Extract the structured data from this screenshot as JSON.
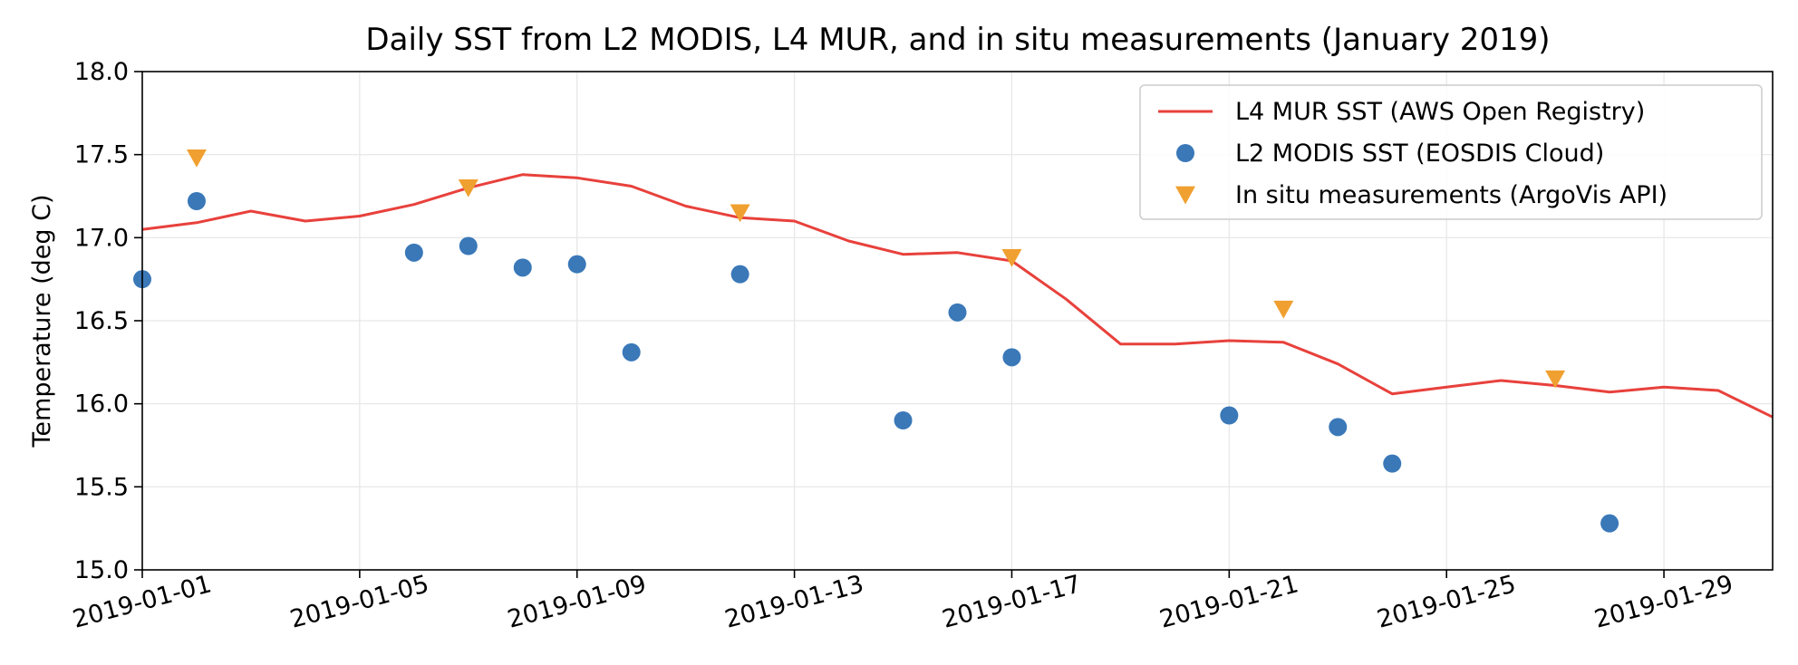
{
  "chart_data": {
    "type": "line",
    "title": "Daily SST from L2 MODIS, L4 MUR, and in situ measurements (January 2019)",
    "xlabel": "",
    "ylabel": "Temperature (deg C)",
    "xlim": [
      "2019-01-01",
      "2019-01-31"
    ],
    "ylim": [
      15.0,
      18.0
    ],
    "x_ticks": [
      "2019-01-01",
      "2019-01-05",
      "2019-01-09",
      "2019-01-13",
      "2019-01-17",
      "2019-01-21",
      "2019-01-25",
      "2019-01-29"
    ],
    "y_ticks": [
      "15.0",
      "15.5",
      "16.0",
      "16.5",
      "17.0",
      "17.5",
      "18.0"
    ],
    "grid": true,
    "legend_position": "top-right",
    "series": [
      {
        "name": "L4 MUR SST (AWS Open Registry)",
        "kind": "line",
        "color": "#e8413c",
        "points": [
          [
            "2019-01-01",
            17.05
          ],
          [
            "2019-01-02",
            17.09
          ],
          [
            "2019-01-03",
            17.16
          ],
          [
            "2019-01-04",
            17.1
          ],
          [
            "2019-01-05",
            17.13
          ],
          [
            "2019-01-06",
            17.2
          ],
          [
            "2019-01-07",
            17.3
          ],
          [
            "2019-01-08",
            17.38
          ],
          [
            "2019-01-09",
            17.36
          ],
          [
            "2019-01-10",
            17.31
          ],
          [
            "2019-01-11",
            17.19
          ],
          [
            "2019-01-12",
            17.12
          ],
          [
            "2019-01-13",
            17.1
          ],
          [
            "2019-01-14",
            16.98
          ],
          [
            "2019-01-15",
            16.9
          ],
          [
            "2019-01-16",
            16.91
          ],
          [
            "2019-01-17",
            16.86
          ],
          [
            "2019-01-18",
            16.63
          ],
          [
            "2019-01-19",
            16.36
          ],
          [
            "2019-01-20",
            16.36
          ],
          [
            "2019-01-21",
            16.38
          ],
          [
            "2019-01-22",
            16.37
          ],
          [
            "2019-01-23",
            16.24
          ],
          [
            "2019-01-24",
            16.06
          ],
          [
            "2019-01-25",
            16.1
          ],
          [
            "2019-01-26",
            16.14
          ],
          [
            "2019-01-27",
            16.11
          ],
          [
            "2019-01-28",
            16.07
          ],
          [
            "2019-01-29",
            16.1
          ],
          [
            "2019-01-30",
            16.08
          ],
          [
            "2019-01-31",
            15.92
          ]
        ]
      },
      {
        "name": "L2 MODIS SST (EOSDIS Cloud)",
        "kind": "scatter",
        "marker": "circle",
        "color": "#3a78b8",
        "points": [
          [
            "2019-01-01",
            16.75
          ],
          [
            "2019-01-02",
            17.22
          ],
          [
            "2019-01-06",
            16.91
          ],
          [
            "2019-01-07",
            16.95
          ],
          [
            "2019-01-08",
            16.82
          ],
          [
            "2019-01-09",
            16.84
          ],
          [
            "2019-01-10",
            16.31
          ],
          [
            "2019-01-12",
            16.78
          ],
          [
            "2019-01-15",
            15.9
          ],
          [
            "2019-01-16",
            16.55
          ],
          [
            "2019-01-17",
            16.28
          ],
          [
            "2019-01-21",
            15.93
          ],
          [
            "2019-01-23",
            15.86
          ],
          [
            "2019-01-24",
            15.64
          ],
          [
            "2019-01-28",
            15.28
          ]
        ]
      },
      {
        "name": "In situ measurements (ArgoVis API)",
        "kind": "scatter",
        "marker": "triangle-down",
        "color": "#f0a030",
        "points": [
          [
            "2019-01-02",
            17.48
          ],
          [
            "2019-01-07",
            17.3
          ],
          [
            "2019-01-12",
            17.15
          ],
          [
            "2019-01-17",
            16.88
          ],
          [
            "2019-01-22",
            16.57
          ],
          [
            "2019-01-27",
            16.15
          ]
        ]
      }
    ]
  }
}
